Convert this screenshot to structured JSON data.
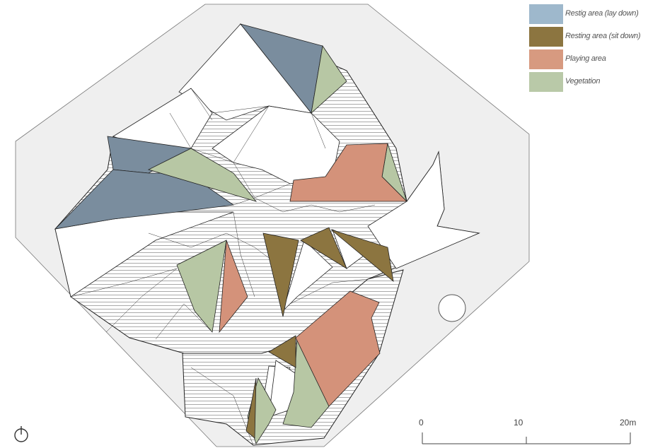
{
  "legend": {
    "items": [
      {
        "label": "Restig area (lay down)",
        "color": "#9eb8cc"
      },
      {
        "label": "Resting area (sit down)",
        "color": "#8c7540"
      },
      {
        "label": "Playing area",
        "color": "#d79a80"
      },
      {
        "label": "Vegetation",
        "color": "#b9c9a8"
      }
    ]
  },
  "scale": {
    "ticks": [
      "0",
      "10",
      "20m"
    ]
  },
  "colors": {
    "site": "#efefef",
    "lay_down": "#7a8d9e",
    "sit_down": "#8c7540",
    "playing": "#d4927a",
    "vegetation": "#b7c7a4",
    "outline": "#222222"
  },
  "north_arrow": {
    "icon": "north-arrow-icon"
  }
}
